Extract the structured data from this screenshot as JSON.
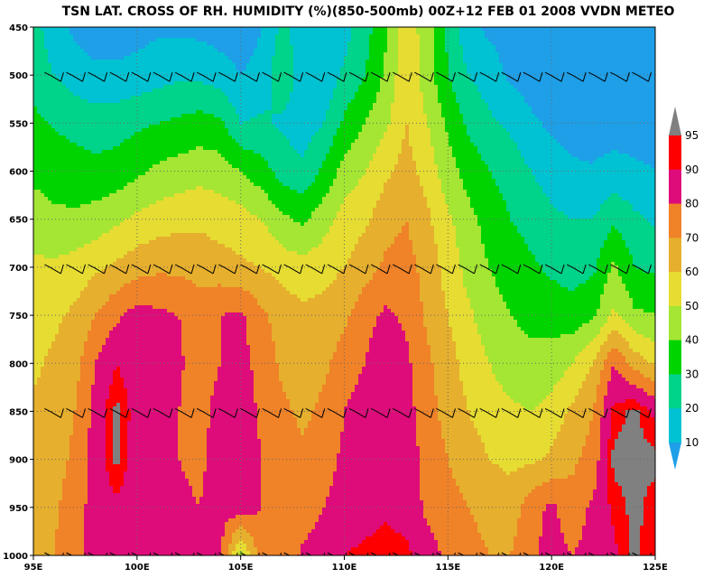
{
  "chart_data": {
    "type": "heatmap",
    "title": "TSN LAT. CROSS OF RH. HUMIDITY (%)(850-500mb) 00Z+12 FEB 01 2008 VVDN METEO",
    "x": {
      "ticks": [
        95,
        100,
        105,
        110,
        115,
        120,
        125
      ],
      "tick_labels": [
        "95E",
        "100E",
        "105E",
        "110E",
        "115E",
        "120E",
        "125E"
      ],
      "range": [
        95,
        125
      ]
    },
    "y": {
      "ticks": [
        450,
        500,
        550,
        600,
        650,
        700,
        750,
        800,
        850,
        900,
        950,
        1000
      ],
      "tick_labels": [
        "450",
        "500",
        "550",
        "600",
        "650",
        "700",
        "750",
        "800",
        "850",
        "900",
        "950",
        "1000"
      ],
      "range": [
        450,
        1000
      ]
    },
    "grid": true,
    "colorbar": {
      "placement": "right",
      "levels": [
        10,
        20,
        30,
        40,
        50,
        60,
        70,
        80,
        90,
        95
      ],
      "level_labels": [
        "10",
        "20",
        "30",
        "40",
        "50",
        "60",
        "70",
        "80",
        "90",
        "95"
      ],
      "below_color": "#1e9fe8",
      "above_color": "#808080",
      "colors": [
        "#00c2d2",
        "#00d38a",
        "#00d400",
        "#a4e633",
        "#e6dc32",
        "#e6af2d",
        "#f08228",
        "#de0c7a",
        "#ff0000"
      ]
    },
    "fill_order": [
      5,
      15,
      25,
      35,
      45,
      55,
      65,
      75,
      85,
      92,
      97
    ],
    "rh_samples": {
      "lons": [
        95,
        96,
        97,
        98,
        99,
        100,
        101,
        102,
        103,
        104,
        105,
        106,
        107,
        108,
        109,
        110,
        111,
        112,
        113,
        114,
        115,
        116,
        117,
        118,
        119,
        120,
        121,
        122,
        123,
        124,
        125
      ],
      "levels": [
        450,
        500,
        550,
        600,
        650,
        700,
        750,
        800,
        850,
        900,
        950,
        1000
      ],
      "rows": [
        [
          24,
          14,
          8,
          5,
          5,
          6,
          8,
          8,
          7,
          5,
          4,
          10,
          22,
          15,
          10,
          16,
          26,
          38,
          57,
          44,
          28,
          12,
          8,
          6,
          5,
          5,
          5,
          5,
          5,
          5,
          5
        ],
        [
          27,
          20,
          15,
          12,
          12,
          14,
          16,
          18,
          18,
          15,
          10,
          13,
          28,
          15,
          12,
          22,
          30,
          42,
          58,
          45,
          30,
          20,
          15,
          8,
          5,
          5,
          5,
          5,
          5,
          5,
          5
        ],
        [
          32,
          29,
          27,
          25,
          26,
          28,
          30,
          32,
          34,
          32,
          20,
          22,
          18,
          15,
          20,
          32,
          40,
          48,
          60,
          50,
          38,
          28,
          22,
          18,
          12,
          8,
          5,
          5,
          5,
          5,
          5
        ],
        [
          38,
          36,
          34,
          33,
          34,
          38,
          42,
          44,
          46,
          45,
          40,
          34,
          26,
          22,
          32,
          44,
          50,
          58,
          64,
          56,
          44,
          36,
          30,
          26,
          20,
          16,
          12,
          11,
          14,
          12,
          10
        ],
        [
          44,
          42,
          42,
          44,
          48,
          52,
          55,
          57,
          58,
          56,
          54,
          50,
          42,
          38,
          46,
          54,
          58,
          66,
          70,
          62,
          52,
          43,
          36,
          30,
          26,
          22,
          20,
          20,
          28,
          22,
          18
        ],
        [
          52,
          52,
          54,
          58,
          62,
          66,
          68,
          68,
          66,
          64,
          62,
          60,
          56,
          54,
          56,
          60,
          66,
          72,
          74,
          66,
          56,
          46,
          40,
          36,
          32,
          28,
          26,
          28,
          42,
          30,
          28
        ],
        [
          56,
          58,
          62,
          70,
          78,
          84,
          82,
          80,
          76,
          80,
          82,
          72,
          66,
          62,
          64,
          68,
          76,
          82,
          78,
          68,
          60,
          52,
          44,
          40,
          38,
          36,
          34,
          38,
          52,
          42,
          40
        ],
        [
          58,
          62,
          66,
          80,
          90,
          84,
          84,
          82,
          74,
          80,
          84,
          76,
          68,
          66,
          68,
          74,
          80,
          88,
          82,
          72,
          64,
          56,
          50,
          44,
          42,
          44,
          50,
          60,
          80,
          66,
          58
        ],
        [
          62,
          64,
          70,
          84,
          97,
          86,
          84,
          80,
          76,
          84,
          86,
          78,
          72,
          68,
          72,
          80,
          86,
          88,
          84,
          74,
          66,
          60,
          56,
          52,
          50,
          54,
          62,
          70,
          92,
          97,
          88
        ],
        [
          64,
          66,
          72,
          84,
          97,
          84,
          82,
          80,
          78,
          84,
          86,
          80,
          74,
          72,
          76,
          82,
          86,
          88,
          86,
          76,
          70,
          64,
          60,
          58,
          58,
          62,
          68,
          74,
          97,
          97,
          97
        ],
        [
          66,
          68,
          76,
          84,
          88,
          84,
          82,
          82,
          80,
          84,
          86,
          80,
          74,
          74,
          80,
          84,
          86,
          88,
          86,
          78,
          74,
          70,
          66,
          64,
          76,
          82,
          74,
          82,
          92,
          97,
          92
        ],
        [
          68,
          70,
          78,
          82,
          84,
          82,
          80,
          80,
          80,
          82,
          46,
          76,
          72,
          82,
          86,
          90,
          92,
          94,
          92,
          84,
          78,
          74,
          70,
          70,
          78,
          84,
          80,
          84,
          88,
          97,
          90
        ]
      ]
    },
    "wind_barb_levels": [
      500,
      700,
      850,
      1000
    ]
  }
}
